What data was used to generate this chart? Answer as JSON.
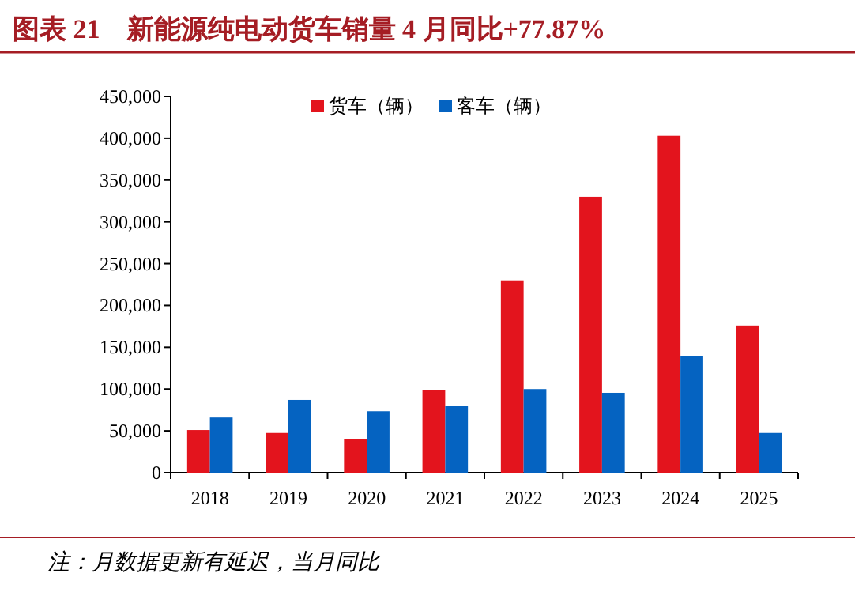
{
  "chart_data": {
    "type": "bar",
    "title": "图表 21　新能源纯电动货车销量 4 月同比+77.87%",
    "categories": [
      "2018",
      "2019",
      "2020",
      "2021",
      "2022",
      "2023",
      "2024",
      "2025"
    ],
    "series": [
      {
        "name": "货车（辆）",
        "color": "#e3141d",
        "values": [
          51000,
          47500,
          40000,
          99000,
          230000,
          330000,
          403000,
          176000
        ]
      },
      {
        "name": "客车（辆）",
        "color": "#0563c1",
        "values": [
          66000,
          87000,
          73500,
          80000,
          100000,
          95500,
          139500,
          47500
        ]
      }
    ],
    "ylim": [
      0,
      450000
    ],
    "yticks": [
      0,
      {
        "value": 50000,
        "label": "50,000"
      },
      {
        "value": 100000,
        "label": "100,000"
      },
      {
        "value": 150000,
        "label": "150,000"
      },
      {
        "value": 200000,
        "label": "200,000"
      },
      {
        "value": 250000,
        "label": "250,000"
      },
      {
        "value": 300000,
        "label": "300,000"
      },
      {
        "value": 350000,
        "label": "350,000"
      },
      {
        "value": 400000,
        "label": "400,000"
      },
      {
        "value": 450000,
        "label": "450,000"
      }
    ],
    "grid": false,
    "legend": "top",
    "annotations": [
      "注：月数据更新有延迟，当月同比"
    ]
  }
}
